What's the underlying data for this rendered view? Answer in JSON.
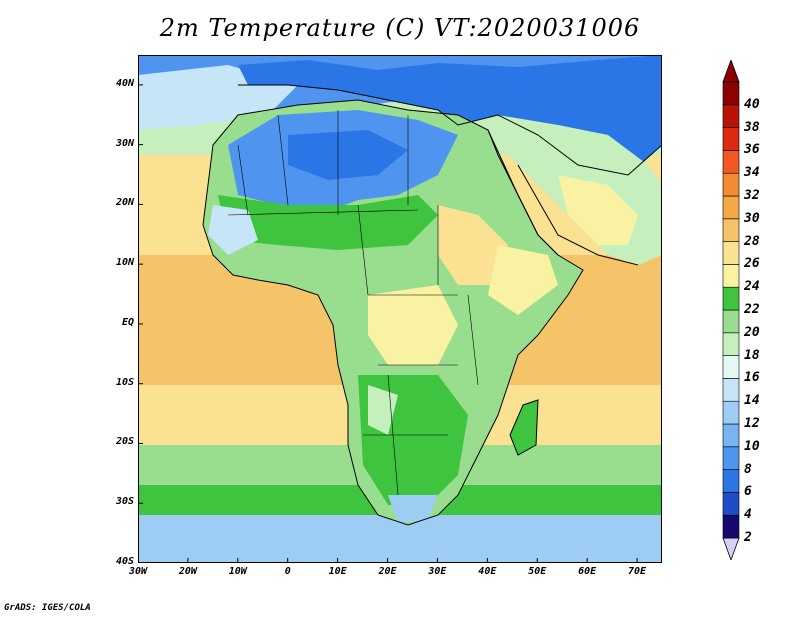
{
  "title": "2m Temperature (C) VT:2020031006",
  "credit": "GrADS: IGES/COLA",
  "map": {
    "lat_range": [
      -40,
      45
    ],
    "lon_range": [
      -30,
      75
    ],
    "lat_ticks": [
      {
        "value": 40,
        "label": "40N"
      },
      {
        "value": 30,
        "label": "30N"
      },
      {
        "value": 20,
        "label": "20N"
      },
      {
        "value": 10,
        "label": "10N"
      },
      {
        "value": 0,
        "label": "EQ"
      },
      {
        "value": -10,
        "label": "10S"
      },
      {
        "value": -20,
        "label": "20S"
      },
      {
        "value": -30,
        "label": "30S"
      },
      {
        "value": -40,
        "label": "40S"
      }
    ],
    "lon_ticks": [
      {
        "value": -30,
        "label": "30W"
      },
      {
        "value": -20,
        "label": "20W"
      },
      {
        "value": -10,
        "label": "10W"
      },
      {
        "value": 0,
        "label": "0"
      },
      {
        "value": 10,
        "label": "10E"
      },
      {
        "value": 20,
        "label": "20E"
      },
      {
        "value": 30,
        "label": "30E"
      },
      {
        "value": 40,
        "label": "40E"
      },
      {
        "value": 50,
        "label": "50E"
      },
      {
        "value": 60,
        "label": "60E"
      },
      {
        "value": 70,
        "label": "70E"
      }
    ]
  },
  "colorbar": {
    "levels": [
      "2",
      "4",
      "6",
      "8",
      "10",
      "12",
      "14",
      "16",
      "18",
      "20",
      "22",
      "24",
      "26",
      "28",
      "30",
      "32",
      "34",
      "36",
      "38",
      "40"
    ],
    "colors": [
      "#160a6e",
      "#1f4dc8",
      "#2a76e6",
      "#4f95f0",
      "#78b4f2",
      "#9ecdf4",
      "#c6e6f8",
      "#e6f8f2",
      "#c6efbe",
      "#98de8e",
      "#3ec43e",
      "#f8f2a2",
      "#fae292",
      "#f6c468",
      "#f4aa44",
      "#f28c34",
      "#f05a22",
      "#dc2a10",
      "#ba1206",
      "#8c0202"
    ],
    "below_color": "#d8d0f4",
    "above_color": "#8c0202"
  }
}
